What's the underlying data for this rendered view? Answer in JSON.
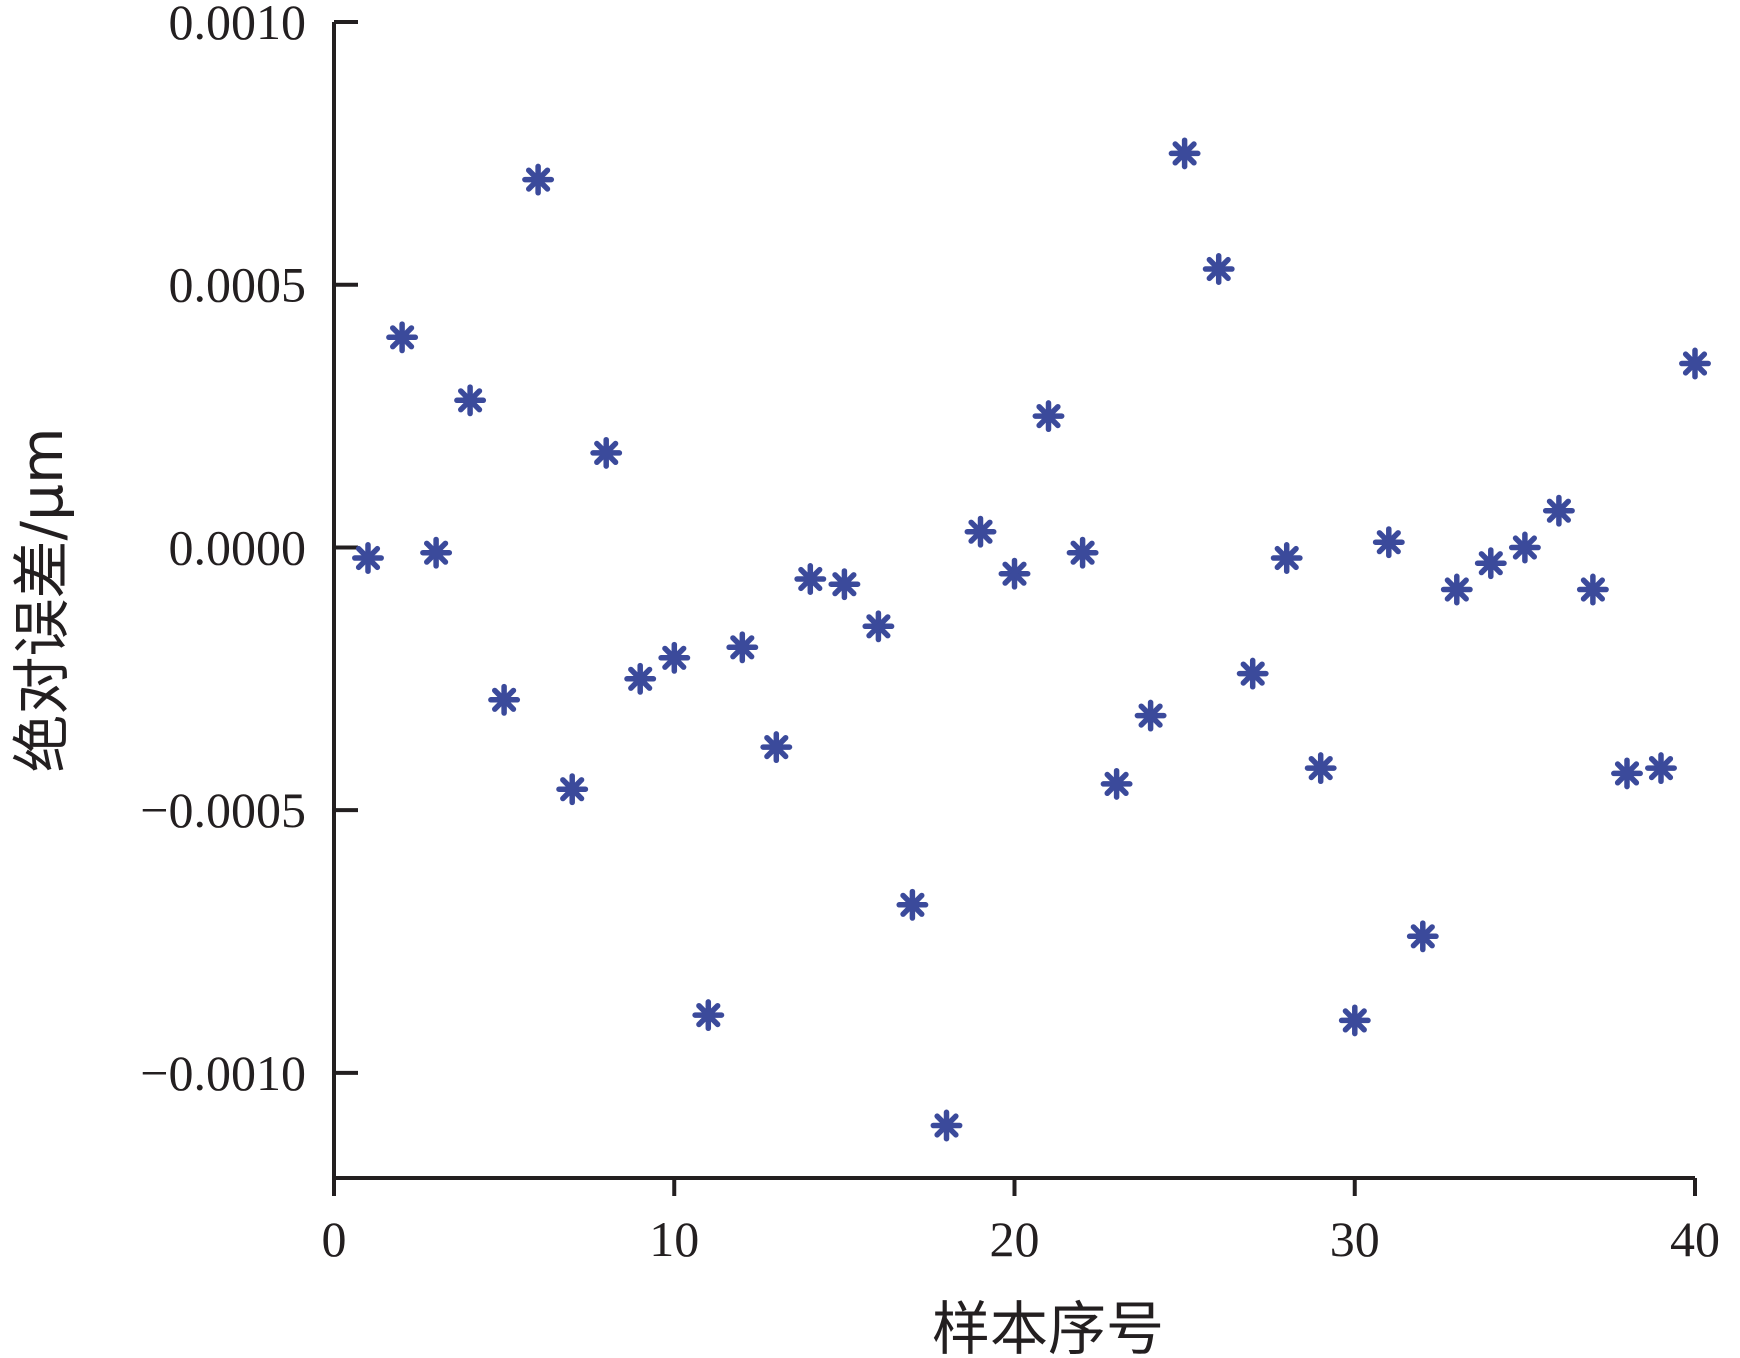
{
  "chart_data": {
    "type": "scatter",
    "title": "",
    "xlabel": "样本序号",
    "ylabel": "绝对误差/μm",
    "xlim": [
      0,
      40
    ],
    "ylim": [
      -0.0012,
      0.001
    ],
    "xticks": [
      0,
      10,
      20,
      30,
      40
    ],
    "xtick_labels": [
      "0",
      "10",
      "20",
      "30",
      "40"
    ],
    "yticks": [
      -0.001,
      -0.0005,
      0.0,
      0.0005,
      0.001
    ],
    "ytick_labels": [
      "−0.0010",
      "−0.0005",
      "0.0000",
      "0.0005",
      "0.0010"
    ],
    "grid": false,
    "marker": "asterisk",
    "marker_color": "#3b4a9b",
    "series": [
      {
        "x": [
          1,
          2,
          3,
          4,
          5,
          6,
          7,
          8,
          9,
          10,
          11,
          12,
          13,
          14,
          15,
          16,
          17,
          18,
          19,
          20,
          21,
          22,
          23,
          24,
          25,
          26,
          27,
          28,
          29,
          30,
          31,
          32,
          33,
          34,
          35,
          36,
          37,
          38,
          39,
          40
        ],
        "y": [
          -2e-05,
          0.0004,
          -1e-05,
          0.00028,
          -0.00029,
          0.0007,
          -0.00046,
          0.00018,
          -0.00025,
          -0.00021,
          -0.00089,
          -0.00019,
          -0.00038,
          -6e-05,
          -7e-05,
          -0.00015,
          -0.00068,
          -0.0011,
          3e-05,
          -5e-05,
          0.00025,
          -1e-05,
          -0.00045,
          -0.00032,
          0.00075,
          0.00053,
          -0.00024,
          -2e-05,
          -0.00042,
          -0.0009,
          1e-05,
          -0.00074,
          -8e-05,
          -3e-05,
          0.0,
          7e-05,
          -8e-05,
          -0.00043,
          -0.00042,
          0.00035
        ]
      }
    ]
  }
}
